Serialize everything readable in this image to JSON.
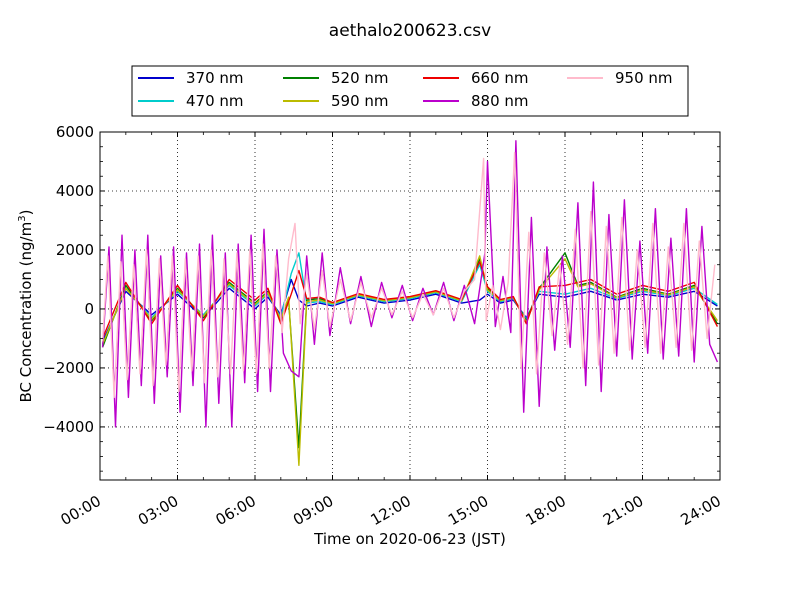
{
  "chart_data": {
    "type": "line",
    "title": "aethalo200623.csv",
    "xlabel": "Time on 2020-06-23 (JST)",
    "ylabel": "BC Concentration (ng/m",
    "ylabel_sup": "3",
    "ylabel_suffix": ")",
    "x_ticks": [
      "00:00",
      "03:00",
      "06:00",
      "09:00",
      "12:00",
      "15:00",
      "18:00",
      "21:00",
      "24:00"
    ],
    "x_tick_hours": [
      0,
      3,
      6,
      9,
      12,
      15,
      18,
      21,
      24
    ],
    "xlim": [
      0,
      24
    ],
    "ylim": [
      -5800,
      6000
    ],
    "y_ticks": [
      -4000,
      -2000,
      0,
      2000,
      4000,
      6000
    ],
    "y_tick_labels": [
      "−4000",
      "−2000",
      "0",
      "2000",
      "4000",
      "6000"
    ],
    "grid": true,
    "legend_position": "top-center",
    "series": [
      {
        "name": "370 nm",
        "color": "#0000cc",
        "x": [
          0.1,
          1.0,
          2.0,
          3.0,
          4.0,
          5.0,
          6.0,
          6.5,
          7.0,
          7.4,
          7.7,
          8.0,
          8.5,
          9.0,
          10.0,
          11.0,
          12.0,
          13.0,
          14.0,
          14.7,
          15.0,
          15.5,
          16.0,
          16.5,
          17.0,
          18.0,
          19.0,
          20.0,
          21.0,
          22.0,
          23.0,
          23.9
        ],
        "y": [
          -1100,
          600,
          -200,
          500,
          -300,
          700,
          0,
          400,
          -200,
          1000,
          300,
          100,
          200,
          100,
          400,
          200,
          300,
          500,
          200,
          300,
          500,
          200,
          300,
          -300,
          500,
          400,
          600,
          300,
          500,
          400,
          600,
          100
        ]
      },
      {
        "name": "470 nm",
        "color": "#00cccc",
        "x": [
          0.1,
          1.0,
          2.0,
          3.0,
          4.0,
          5.0,
          6.0,
          6.5,
          7.0,
          7.4,
          7.7,
          8.0,
          8.5,
          9.0,
          10.0,
          11.0,
          12.0,
          13.0,
          14.0,
          14.7,
          15.0,
          15.5,
          16.0,
          16.5,
          17.0,
          18.0,
          19.0,
          20.0,
          21.0,
          22.0,
          23.0,
          23.9
        ],
        "y": [
          -1200,
          700,
          -300,
          600,
          -200,
          800,
          100,
          500,
          -300,
          1200,
          1900,
          200,
          250,
          150,
          450,
          250,
          350,
          550,
          250,
          1500,
          600,
          250,
          350,
          -350,
          600,
          500,
          700,
          350,
          600,
          450,
          700,
          150
        ]
      },
      {
        "name": "520 nm",
        "color": "#008000",
        "x": [
          0.1,
          1.0,
          2.0,
          3.0,
          4.0,
          5.0,
          6.0,
          6.5,
          7.0,
          7.3,
          7.7,
          8.0,
          8.5,
          9.0,
          10.0,
          11.0,
          12.0,
          13.0,
          14.0,
          14.7,
          15.0,
          15.5,
          16.0,
          16.5,
          17.0,
          18.0,
          18.5,
          19.0,
          20.0,
          21.0,
          22.0,
          23.0,
          23.9
        ],
        "y": [
          -1300,
          800,
          -400,
          700,
          -300,
          900,
          200,
          600,
          -400,
          300,
          -4700,
          300,
          350,
          200,
          500,
          300,
          400,
          600,
          300,
          1700,
          700,
          300,
          400,
          -400,
          700,
          1900,
          800,
          900,
          400,
          700,
          500,
          800,
          -500
        ]
      },
      {
        "name": "590 nm",
        "color": "#bbbb00",
        "x": [
          0.1,
          1.0,
          2.0,
          3.0,
          4.0,
          5.0,
          6.0,
          6.5,
          7.0,
          7.3,
          7.7,
          8.0,
          8.5,
          9.0,
          10.0,
          11.0,
          12.0,
          13.0,
          14.0,
          14.7,
          15.0,
          15.5,
          16.0,
          16.5,
          17.0,
          18.0,
          18.5,
          19.0,
          20.0,
          21.0,
          22.0,
          23.0,
          23.9
        ],
        "y": [
          -1200,
          700,
          -350,
          650,
          -250,
          850,
          150,
          550,
          -350,
          400,
          -5300,
          250,
          300,
          180,
          480,
          280,
          380,
          580,
          280,
          1800,
          650,
          280,
          380,
          -450,
          650,
          1700,
          750,
          850,
          380,
          650,
          480,
          750,
          -400
        ]
      },
      {
        "name": "660 nm",
        "color": "#ee0000",
        "x": [
          0.1,
          1.0,
          2.0,
          3.0,
          4.0,
          5.0,
          6.0,
          6.5,
          7.0,
          7.4,
          7.7,
          8.0,
          8.5,
          9.0,
          10.0,
          11.0,
          12.0,
          13.0,
          14.0,
          14.7,
          15.0,
          15.5,
          16.0,
          16.5,
          17.0,
          18.0,
          19.0,
          20.0,
          21.0,
          22.0,
          23.0,
          23.9
        ],
        "y": [
          -1000,
          900,
          -500,
          800,
          -400,
          1000,
          300,
          700,
          -500,
          500,
          1300,
          350,
          400,
          220,
          520,
          320,
          420,
          620,
          320,
          1600,
          750,
          320,
          420,
          -500,
          750,
          800,
          1000,
          500,
          800,
          600,
          900,
          -600
        ]
      },
      {
        "name": "880 nm",
        "color": "#bb00cc",
        "x": [
          0.1,
          0.35,
          0.6,
          0.85,
          1.1,
          1.35,
          1.6,
          1.85,
          2.1,
          2.35,
          2.6,
          2.85,
          3.1,
          3.35,
          3.6,
          3.85,
          4.1,
          4.35,
          4.6,
          4.85,
          5.1,
          5.35,
          5.6,
          5.85,
          6.1,
          6.35,
          6.6,
          6.85,
          7.1,
          7.4,
          7.7,
          8.0,
          8.3,
          8.6,
          8.9,
          9.3,
          9.7,
          10.1,
          10.5,
          10.9,
          11.3,
          11.7,
          12.1,
          12.5,
          12.9,
          13.3,
          13.7,
          14.1,
          14.5,
          14.9,
          15.0,
          15.3,
          15.6,
          15.9,
          16.1,
          16.4,
          16.7,
          17.0,
          17.3,
          17.6,
          17.9,
          18.2,
          18.5,
          18.8,
          19.1,
          19.4,
          19.7,
          20.0,
          20.3,
          20.6,
          20.9,
          21.2,
          21.5,
          21.8,
          22.1,
          22.4,
          22.7,
          23.0,
          23.3,
          23.6,
          23.9
        ],
        "y": [
          -1300,
          2100,
          -4000,
          2500,
          -3000,
          2000,
          -2600,
          2500,
          -3200,
          1800,
          -2300,
          2100,
          -3500,
          1900,
          -2600,
          2200,
          -4000,
          2500,
          -3200,
          1900,
          -4000,
          2200,
          -2500,
          2500,
          -2800,
          2700,
          -2800,
          2000,
          -1500,
          -2100,
          -2300,
          1800,
          -1200,
          1900,
          -900,
          1400,
          -500,
          1100,
          -600,
          900,
          -300,
          800,
          -400,
          700,
          -200,
          900,
          -400,
          800,
          -500,
          1900,
          5000,
          -600,
          1100,
          -800,
          5700,
          -3500,
          3100,
          -3300,
          2100,
          -1400,
          1800,
          -1300,
          3600,
          -2600,
          4300,
          -2800,
          3200,
          -1600,
          3700,
          -1700,
          2300,
          -1500,
          3400,
          -1700,
          2400,
          -1600,
          3400,
          -1800,
          2800,
          -1200,
          -1800
        ]
      },
      {
        "name": "950 nm",
        "color": "#ffbbcc",
        "x": [
          0.1,
          0.3,
          0.55,
          0.8,
          1.05,
          1.3,
          1.55,
          1.8,
          2.05,
          2.3,
          2.55,
          2.8,
          3.05,
          3.3,
          3.55,
          3.8,
          4.05,
          4.3,
          4.55,
          4.8,
          5.05,
          5.3,
          5.55,
          5.8,
          6.05,
          6.3,
          6.55,
          6.8,
          7.05,
          7.3,
          7.55,
          7.75,
          8.0,
          8.3,
          8.6,
          8.9,
          9.3,
          9.7,
          10.1,
          10.5,
          10.9,
          11.3,
          11.7,
          12.1,
          12.5,
          12.9,
          13.3,
          13.7,
          14.1,
          14.5,
          14.85,
          14.95,
          15.2,
          15.5,
          15.8,
          16.05,
          16.3,
          16.6,
          16.9,
          17.2,
          17.5,
          17.8,
          18.1,
          18.4,
          18.7,
          19.0,
          19.3,
          19.6,
          19.9,
          20.2,
          20.5,
          20.8,
          21.1,
          21.4,
          21.7,
          22.0,
          22.3,
          22.6,
          22.9,
          23.2,
          23.5,
          23.8
        ],
        "y": [
          -1100,
          1800,
          -3000,
          1600,
          -2400,
          1500,
          -2200,
          2000,
          -2600,
          1700,
          -1900,
          1800,
          -2800,
          1700,
          -2100,
          1800,
          -2500,
          2000,
          -2300,
          1700,
          -2200,
          1900,
          -2100,
          2000,
          -2200,
          2200,
          -2000,
          1800,
          -800,
          1700,
          2900,
          -500,
          1200,
          -700,
          1300,
          -600,
          1000,
          -400,
          900,
          -300,
          700,
          -200,
          600,
          -300,
          500,
          -200,
          700,
          -300,
          600,
          1000,
          5100,
          -400,
          800,
          -700,
          900,
          5300,
          -2000,
          2600,
          -2200,
          1900,
          -900,
          1500,
          -1200,
          2700,
          -2000,
          3300,
          -1900,
          2800,
          -1500,
          3100,
          -1400,
          2000,
          -1300,
          2900,
          -1500,
          2100,
          -1300,
          2900,
          -1400,
          2300,
          -1000,
          1500
        ]
      }
    ]
  }
}
